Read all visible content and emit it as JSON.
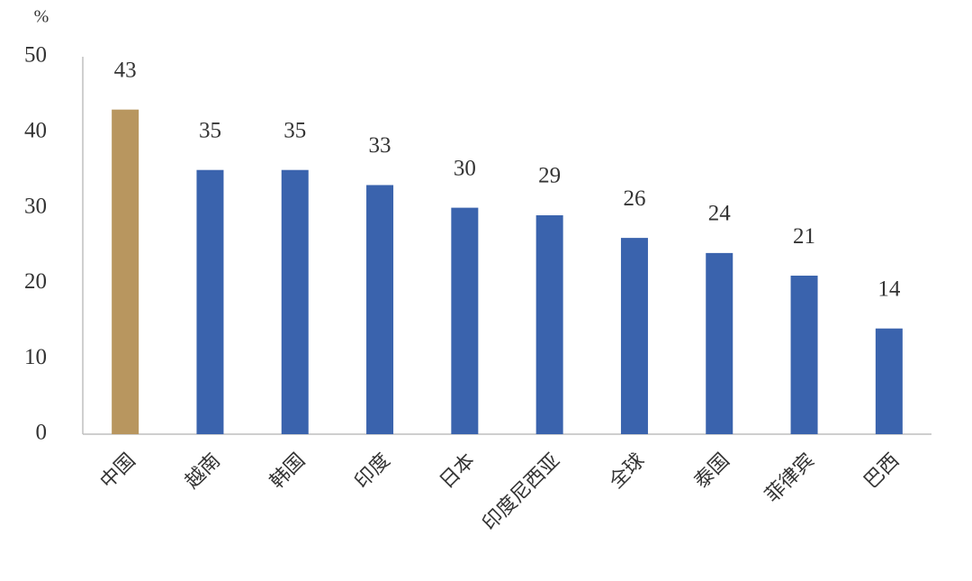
{
  "chart_data": {
    "type": "bar",
    "y_unit": "%",
    "categories": [
      "中国",
      "越南",
      "韩国",
      "印度",
      "日本",
      "印度尼西亚",
      "全球",
      "泰国",
      "菲律宾",
      "巴西"
    ],
    "values": [
      43,
      35,
      35,
      33,
      30,
      29,
      26,
      24,
      21,
      14
    ],
    "colors": [
      "#b8965f",
      "#3a63ad",
      "#3a63ad",
      "#3a63ad",
      "#3a63ad",
      "#3a63ad",
      "#3a63ad",
      "#3a63ad",
      "#3a63ad",
      "#3a63ad"
    ],
    "ylim": [
      0,
      50
    ],
    "yticks": [
      0,
      10,
      20,
      30,
      40,
      50
    ],
    "grid": false
  }
}
